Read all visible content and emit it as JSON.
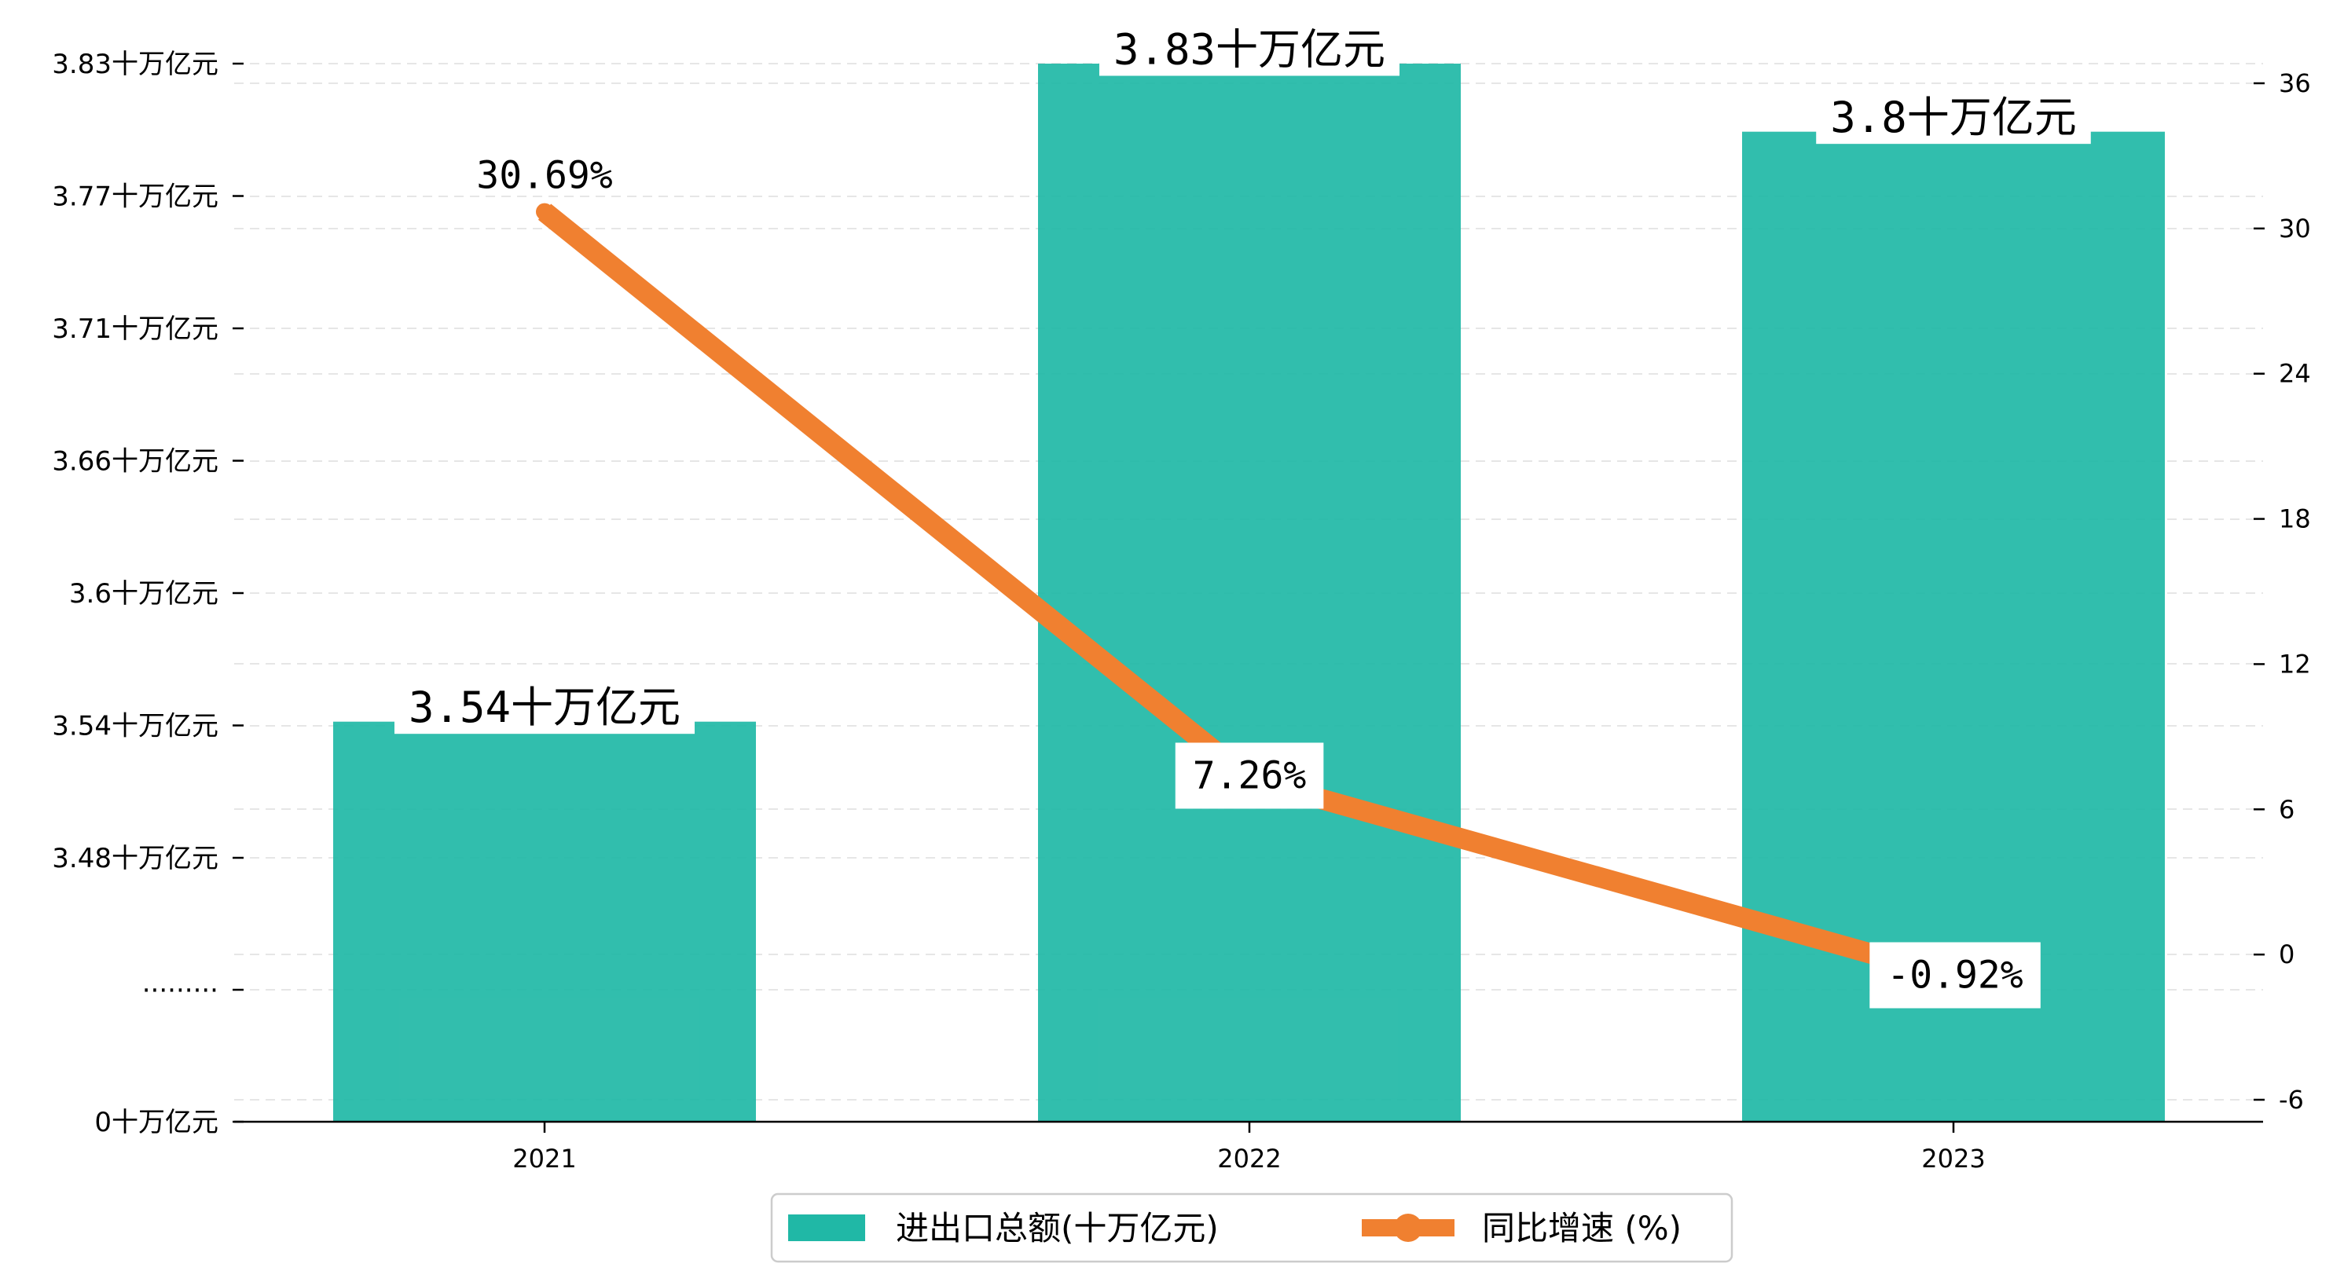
{
  "chart_data": {
    "type": "bar",
    "categories": [
      "2021",
      "2022",
      "2023"
    ],
    "series": [
      {
        "name": "进出口总额(十万亿元)",
        "type": "bar",
        "axis": "left",
        "values": [
          3.54,
          3.83,
          3.8
        ],
        "labels": [
          "3.54十万亿元",
          "3.83十万亿元",
          "3.8十万亿元"
        ],
        "color": "#20B8A6"
      },
      {
        "name": "同比增速 (%)",
        "type": "line",
        "axis": "right",
        "values": [
          30.69,
          7.26,
          -0.92
        ],
        "labels": [
          "30.69%",
          "7.26%",
          "-0.92%"
        ],
        "color": "#F08030"
      }
    ],
    "left_axis": {
      "ticks": [
        "0十万亿元",
        "·········",
        "3.48十万亿元",
        "3.54十万亿元",
        "3.6十万亿元",
        "3.66十万亿元",
        "3.71十万亿元",
        "3.77十万亿元",
        "3.83十万亿元"
      ],
      "broken": true,
      "note": "axis break shown by the '·········' tick between 0 and 3.48"
    },
    "right_axis": {
      "ticks": [
        "-6",
        "0",
        "6",
        "12",
        "18",
        "24",
        "30",
        "36"
      ],
      "ylim": [
        -7,
        36.5
      ]
    },
    "grid": "horizontal dashed",
    "legend_position": "bottom-center"
  }
}
